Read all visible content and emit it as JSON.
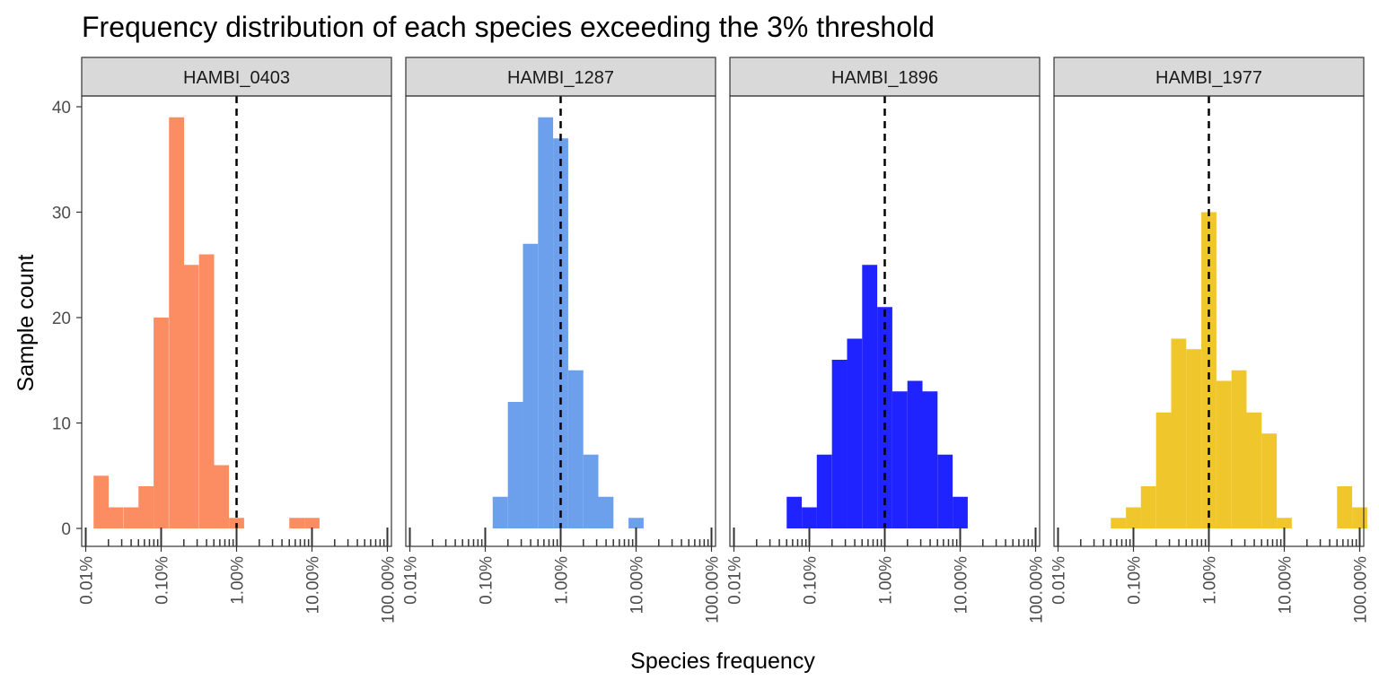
{
  "chart_data": {
    "type": "bar",
    "title": "Frequency distribution of each species exceeding the 3% threshold",
    "xlabel": "Species frequency",
    "ylabel": "Sample count",
    "x_scale": "log10",
    "xlim": [
      0.01,
      100
    ],
    "ylim": [
      0,
      41
    ],
    "x_ticks": [
      "0.01%",
      "0.10%",
      "1.00%",
      "10.00%",
      "100.00%"
    ],
    "x_tick_values": [
      0.01,
      0.1,
      1,
      10,
      100
    ],
    "y_ticks": [
      0,
      10,
      20,
      30,
      40
    ],
    "bin_width_log10": 0.2,
    "reference_line": 1,
    "rug": true,
    "grid": false,
    "panels": [
      {
        "name": "HAMBI_0403",
        "color": "#FC8D62",
        "bins": [
          {
            "x": 0.016,
            "count": 5
          },
          {
            "x": 0.025,
            "count": 2
          },
          {
            "x": 0.04,
            "count": 2
          },
          {
            "x": 0.063,
            "count": 4
          },
          {
            "x": 0.1,
            "count": 20
          },
          {
            "x": 0.16,
            "count": 39
          },
          {
            "x": 0.25,
            "count": 25
          },
          {
            "x": 0.4,
            "count": 26
          },
          {
            "x": 0.63,
            "count": 6
          },
          {
            "x": 1.0,
            "count": 1
          },
          {
            "x": 1.6,
            "count": 0
          },
          {
            "x": 2.5,
            "count": 0
          },
          {
            "x": 4.0,
            "count": 0
          },
          {
            "x": 6.3,
            "count": 1
          },
          {
            "x": 10.0,
            "count": 1
          }
        ]
      },
      {
        "name": "HAMBI_1287",
        "color": "#6CA0EC",
        "bins": [
          {
            "x": 0.158,
            "count": 3
          },
          {
            "x": 0.251,
            "count": 12
          },
          {
            "x": 0.398,
            "count": 27
          },
          {
            "x": 0.631,
            "count": 39
          },
          {
            "x": 1.0,
            "count": 37
          },
          {
            "x": 1.585,
            "count": 15
          },
          {
            "x": 2.512,
            "count": 7
          },
          {
            "x": 3.981,
            "count": 3
          },
          {
            "x": 6.31,
            "count": 0
          },
          {
            "x": 10.0,
            "count": 1
          }
        ]
      },
      {
        "name": "HAMBI_1896",
        "color": "#1F23FF",
        "bins": [
          {
            "x": 0.063,
            "count": 3
          },
          {
            "x": 0.1,
            "count": 2
          },
          {
            "x": 0.158,
            "count": 7
          },
          {
            "x": 0.251,
            "count": 16
          },
          {
            "x": 0.398,
            "count": 18
          },
          {
            "x": 0.631,
            "count": 25
          },
          {
            "x": 1.0,
            "count": 21
          },
          {
            "x": 1.585,
            "count": 13
          },
          {
            "x": 2.512,
            "count": 14
          },
          {
            "x": 3.981,
            "count": 13
          },
          {
            "x": 6.31,
            "count": 7
          },
          {
            "x": 10.0,
            "count": 3
          }
        ]
      },
      {
        "name": "HAMBI_1977",
        "color": "#F0C62D",
        "bins": [
          {
            "x": 0.063,
            "count": 1
          },
          {
            "x": 0.1,
            "count": 2
          },
          {
            "x": 0.158,
            "count": 4
          },
          {
            "x": 0.251,
            "count": 11
          },
          {
            "x": 0.398,
            "count": 18
          },
          {
            "x": 0.631,
            "count": 17
          },
          {
            "x": 1.0,
            "count": 30
          },
          {
            "x": 1.585,
            "count": 14
          },
          {
            "x": 2.512,
            "count": 15
          },
          {
            "x": 3.981,
            "count": 11
          },
          {
            "x": 6.31,
            "count": 9
          },
          {
            "x": 10.0,
            "count": 1
          },
          {
            "x": 15.85,
            "count": 0
          },
          {
            "x": 25.12,
            "count": 0
          },
          {
            "x": 39.81,
            "count": 0
          },
          {
            "x": 63.1,
            "count": 4
          },
          {
            "x": 100.0,
            "count": 2
          }
        ]
      }
    ]
  }
}
